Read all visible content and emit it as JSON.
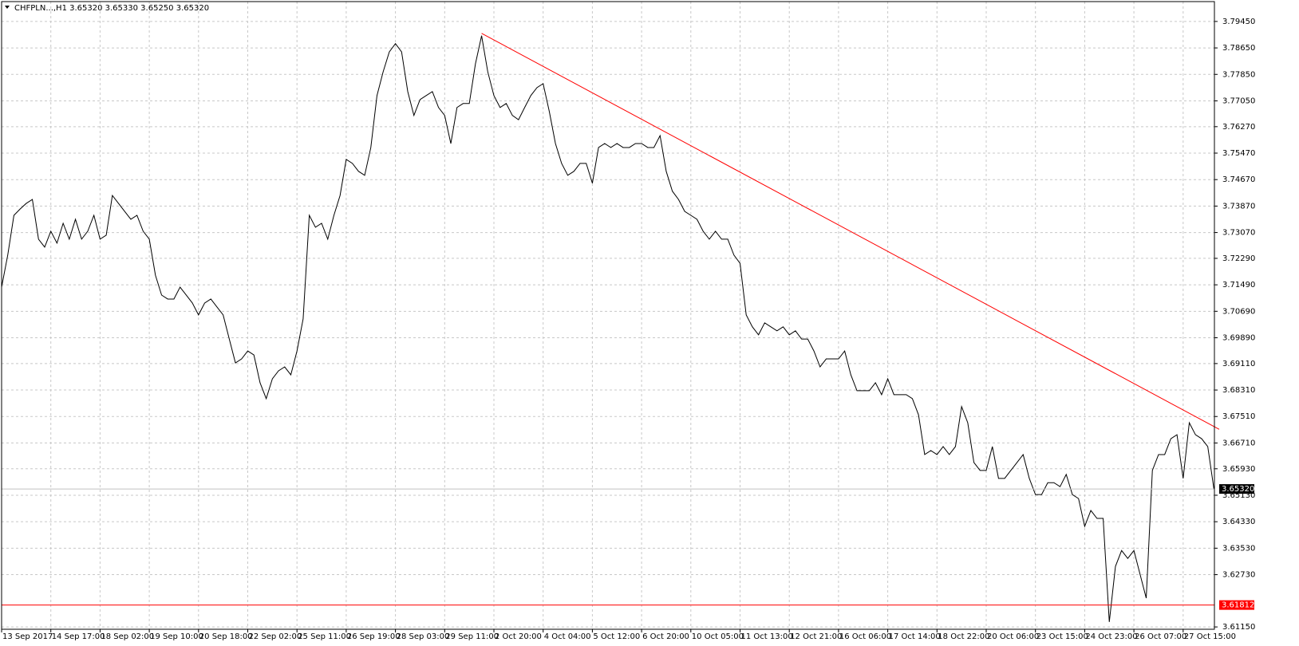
{
  "chart_data": {
    "type": "line",
    "title": "CHFPLN...,H1  3.65320 3.65330 3.65250 3.65320",
    "color": "#000000",
    "grid": true,
    "categories": [
      "13 Sep 2017",
      null,
      null,
      null,
      null,
      null,
      null,
      null,
      "14 Sep 17:00",
      null,
      null,
      null,
      null,
      null,
      null,
      null,
      "18 Sep 02:00",
      null,
      null,
      null,
      null,
      null,
      null,
      null,
      "19 Sep 10:00",
      null,
      null,
      null,
      null,
      null,
      null,
      null,
      "20 Sep 18:00",
      null,
      null,
      null,
      null,
      null,
      null,
      null,
      "22 Sep 02:00",
      null,
      null,
      null,
      null,
      null,
      null,
      null,
      "25 Sep 11:00",
      null,
      null,
      null,
      null,
      null,
      null,
      null,
      "26 Sep 19:00",
      null,
      null,
      null,
      null,
      null,
      null,
      null,
      "28 Sep 03:00",
      null,
      null,
      null,
      null,
      null,
      null,
      null,
      "29 Sep 11:00",
      null,
      null,
      null,
      null,
      null,
      null,
      null,
      "2 Oct 20:00",
      null,
      null,
      null,
      null,
      null,
      null,
      null,
      "4 Oct 04:00",
      null,
      null,
      null,
      null,
      null,
      null,
      null,
      "5 Oct 12:00",
      null,
      null,
      null,
      null,
      null,
      null,
      null,
      "6 Oct 20:00",
      null,
      null,
      null,
      null,
      null,
      null,
      null,
      "10 Oct 05:00",
      null,
      null,
      null,
      null,
      null,
      null,
      null,
      "11 Oct 13:00",
      null,
      null,
      null,
      null,
      null,
      null,
      null,
      "12 Oct 21:00",
      null,
      null,
      null,
      null,
      null,
      null,
      null,
      "16 Oct 06:00",
      null,
      null,
      null,
      null,
      null,
      null,
      null,
      "17 Oct 14:00",
      null,
      null,
      null,
      null,
      null,
      null,
      null,
      "18 Oct 22:00",
      null,
      null,
      null,
      null,
      null,
      null,
      null,
      "20 Oct 06:00",
      null,
      null,
      null,
      null,
      null,
      null,
      null,
      "23 Oct 15:00",
      null,
      null,
      null,
      null,
      null,
      null,
      null,
      "24 Oct 23:00",
      null,
      null,
      null,
      null,
      null,
      null,
      null,
      "26 Oct 07:00",
      null,
      null,
      null,
      null,
      null,
      null,
      null,
      "27 Oct 15:00",
      null,
      null,
      null,
      null,
      null
    ],
    "values": [
      3.7142,
      3.7239,
      3.7359,
      3.7378,
      3.7395,
      3.7407,
      3.7287,
      3.7263,
      3.7311,
      3.7275,
      3.7335,
      3.7287,
      3.7347,
      3.7287,
      3.7311,
      3.7359,
      3.7287,
      3.7299,
      3.7419,
      3.7395,
      3.7371,
      3.7347,
      3.7359,
      3.7311,
      3.7287,
      3.7178,
      3.7118,
      3.7106,
      3.7106,
      3.7142,
      3.7118,
      3.7094,
      3.7058,
      3.7094,
      3.7106,
      3.7082,
      3.7058,
      3.6985,
      3.6913,
      3.6925,
      3.6949,
      3.6937,
      3.6853,
      3.6805,
      3.6865,
      3.6889,
      3.6901,
      3.6877,
      3.6949,
      3.7046,
      3.7359,
      3.7323,
      3.7335,
      3.7287,
      3.7359,
      3.7419,
      3.7528,
      3.7516,
      3.7492,
      3.748,
      3.7564,
      3.7721,
      3.7793,
      3.7853,
      3.7878,
      3.7853,
      3.7733,
      3.7661,
      3.7709,
      3.7721,
      3.7733,
      3.7685,
      3.7661,
      3.7576,
      3.7685,
      3.7697,
      3.7697,
      3.7817,
      3.7902,
      3.7793,
      3.7721,
      3.7685,
      3.7697,
      3.7661,
      3.7648,
      3.7685,
      3.7721,
      3.7745,
      3.7757,
      3.7673,
      3.7576,
      3.7516,
      3.748,
      3.7492,
      3.7516,
      3.7516,
      3.7456,
      3.7564,
      3.7576,
      3.7564,
      3.7576,
      3.7564,
      3.7564,
      3.7576,
      3.7576,
      3.7564,
      3.7564,
      3.76,
      3.7492,
      3.7432,
      3.7407,
      3.7371,
      3.7359,
      3.7347,
      3.7311,
      3.7287,
      3.7311,
      3.7287,
      3.7287,
      3.7239,
      3.7214,
      3.7058,
      3.7022,
      3.6998,
      3.7034,
      3.7022,
      3.701,
      3.7022,
      3.6998,
      3.701,
      3.6985,
      3.6985,
      3.6949,
      3.6901,
      3.6925,
      3.6925,
      3.6925,
      3.6949,
      3.6877,
      3.6829,
      3.6829,
      3.6829,
      3.6853,
      3.6817,
      3.6865,
      3.6817,
      3.6817,
      3.6817,
      3.6805,
      3.6756,
      3.6636,
      3.6648,
      3.6636,
      3.666,
      3.6636,
      3.666,
      3.6781,
      3.6732,
      3.6612,
      3.6588,
      3.6588,
      3.666,
      3.6564,
      3.6564,
      3.6588,
      3.6612,
      3.6636,
      3.6564,
      3.6515,
      3.6515,
      3.6551,
      3.6551,
      3.6539,
      3.6576,
      3.6515,
      3.6503,
      3.6419,
      3.6467,
      3.6443,
      3.6443,
      3.613,
      3.6298,
      3.6346,
      3.6322,
      3.6346,
      3.6274,
      3.6202,
      3.6588,
      3.6636,
      3.6636,
      3.6684,
      3.6696,
      3.6564,
      3.6732,
      3.6696,
      3.6684,
      3.666,
      3.6532
    ],
    "ylim": [
      3.6108,
      3.8005
    ],
    "yticks": [
      {
        "value": 3.7945,
        "label": "3.79450"
      },
      {
        "value": 3.7865,
        "label": "3.78650"
      },
      {
        "value": 3.7785,
        "label": "3.77850"
      },
      {
        "value": 3.7705,
        "label": "3.77050"
      },
      {
        "value": 3.7627,
        "label": "3.76270"
      },
      {
        "value": 3.7547,
        "label": "3.75470"
      },
      {
        "value": 3.7467,
        "label": "3.74670"
      },
      {
        "value": 3.7387,
        "label": "3.73870"
      },
      {
        "value": 3.7307,
        "label": "3.73070"
      },
      {
        "value": 3.7229,
        "label": "3.72290"
      },
      {
        "value": 3.7149,
        "label": "3.71490"
      },
      {
        "value": 3.7069,
        "label": "3.70690"
      },
      {
        "value": 3.6989,
        "label": "3.69890"
      },
      {
        "value": 3.6911,
        "label": "3.69110"
      },
      {
        "value": 3.6831,
        "label": "3.68310"
      },
      {
        "value": 3.6751,
        "label": "3.67510"
      },
      {
        "value": 3.6671,
        "label": "3.66710"
      },
      {
        "value": 3.6593,
        "label": "3.65930"
      },
      {
        "value": 3.6513,
        "label": "3.65130"
      },
      {
        "value": 3.6433,
        "label": "3.64330"
      },
      {
        "value": 3.6353,
        "label": "3.63530"
      },
      {
        "value": 3.6273,
        "label": "3.62730"
      },
      {
        "value": 3.6115,
        "label": "3.61150"
      }
    ],
    "price_line": {
      "value": 3.6532,
      "label": "3.65320",
      "color": "#c0c0c0",
      "box_color": "#000000"
    },
    "level_line": {
      "value": 3.61812,
      "label": "3.61812",
      "color": "#ff0000"
    },
    "trend_line": {
      "color": "#ff0000",
      "start": 3.7909,
      "end": 3.672
    }
  }
}
